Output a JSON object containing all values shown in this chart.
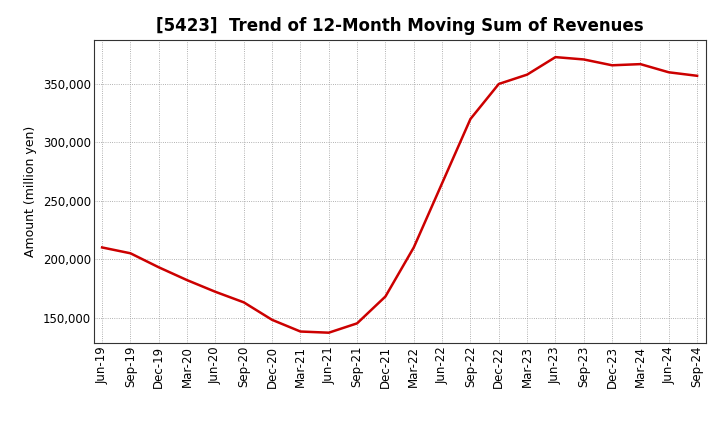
{
  "title": "[5423]  Trend of 12-Month Moving Sum of Revenues",
  "ylabel": "Amount (million yen)",
  "line_color": "#cc0000",
  "background_color": "#ffffff",
  "plot_bg_color": "#ffffff",
  "grid_color": "#999999",
  "x_labels": [
    "Jun-19",
    "Sep-19",
    "Dec-19",
    "Mar-20",
    "Jun-20",
    "Sep-20",
    "Dec-20",
    "Mar-21",
    "Jun-21",
    "Sep-21",
    "Dec-21",
    "Mar-22",
    "Jun-22",
    "Sep-22",
    "Dec-22",
    "Mar-23",
    "Jun-23",
    "Sep-23",
    "Dec-23",
    "Mar-24",
    "Jun-24",
    "Sep-24"
  ],
  "y_values": [
    210000,
    205000,
    193000,
    182000,
    172000,
    163000,
    148000,
    138000,
    137000,
    145000,
    168000,
    210000,
    265000,
    320000,
    350000,
    358000,
    373000,
    371000,
    366000,
    367000,
    360000,
    357000
  ],
  "ylim": [
    128000,
    388000
  ],
  "yticks": [
    150000,
    200000,
    250000,
    300000,
    350000
  ],
  "title_fontsize": 12,
  "axis_fontsize": 9,
  "tick_fontsize": 8.5
}
